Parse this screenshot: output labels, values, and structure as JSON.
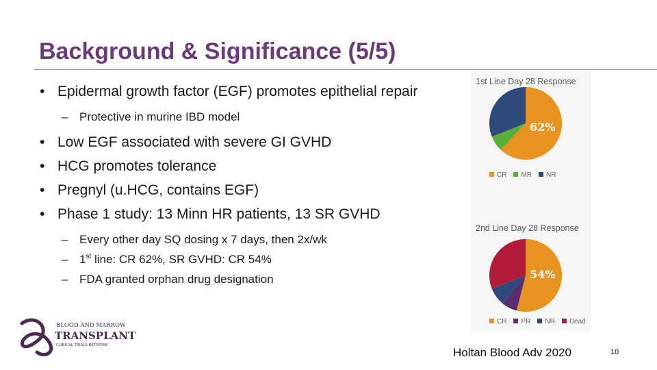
{
  "slide": {
    "title": "Background & Significance (5/5)",
    "page_number": "10",
    "citation": "Holtan Blood Adv 2020"
  },
  "bullets": [
    {
      "text": "Epidermal growth factor (EGF) promotes epithelial repair",
      "sub": [
        "Protective in murine IBD model"
      ]
    },
    {
      "text": "Low EGF associated with severe GI GVHD"
    },
    {
      "text": "HCG promotes tolerance"
    },
    {
      "text": "Pregnyl (u.HCG, contains EGF)"
    },
    {
      "text": "Phase 1 study: 13 Minn HR patients, 13 SR GVHD",
      "sub": [
        "Every other day SQ dosing x 7 days, then 2x/wk",
        "1st line: CR 62%, SR GVHD: CR 54%",
        "FDA granted orphan drug designation"
      ]
    }
  ],
  "logo": {
    "line1": "BLOOD AND MARROW",
    "line2": "TRANSPLANT",
    "line3": "CLINICAL TRIALS NETWORK"
  },
  "chart_data": [
    {
      "type": "pie",
      "title": "1st Line Day 28 Response",
      "categories": [
        "CR",
        "MR",
        "NR"
      ],
      "values": [
        62,
        7,
        31
      ],
      "colors": [
        "#e8921f",
        "#5aae3a",
        "#2e4a7d"
      ],
      "label": "62%"
    },
    {
      "type": "pie",
      "title": "2nd Line Day 28 Response",
      "categories": [
        "CR",
        "PR",
        "NR",
        "Dead"
      ],
      "values": [
        54,
        7,
        8,
        31
      ],
      "colors": [
        "#e8921f",
        "#5a2d6e",
        "#2e4a7d",
        "#b11a3a"
      ],
      "label": "54%"
    }
  ]
}
